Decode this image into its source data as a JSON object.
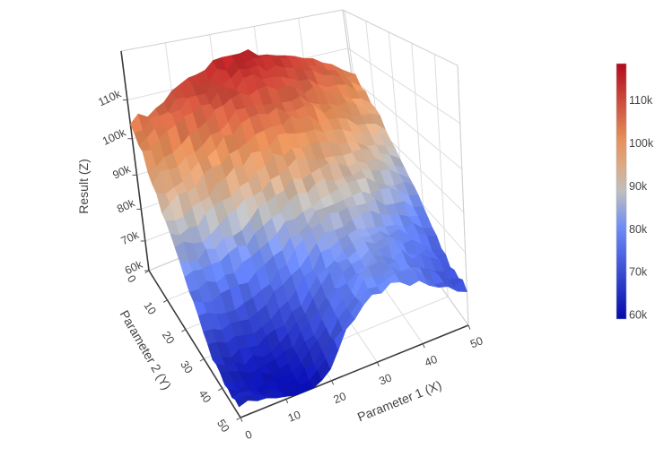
{
  "chart_data": {
    "type": "surface",
    "title": "",
    "xlabel": "Parameter 1 (X)",
    "ylabel": "Parameter 2 (Y)",
    "zlabel": "Result (Z)",
    "x": [
      0,
      5,
      10,
      15,
      20,
      25,
      30,
      35,
      40,
      45,
      50
    ],
    "y": [
      0,
      5,
      10,
      15,
      20,
      25,
      30,
      35,
      40,
      45,
      50
    ],
    "z_unit": "thousands",
    "z_k": [
      [
        103,
        106,
        110,
        113,
        115,
        116,
        114,
        112,
        109,
        106,
        104
      ],
      [
        100,
        104,
        107,
        110,
        112,
        113,
        112,
        110,
        107,
        104,
        101
      ],
      [
        96,
        100,
        103,
        105,
        107,
        108,
        107,
        104,
        101,
        98,
        96
      ],
      [
        92,
        95,
        98,
        101,
        103,
        103,
        101,
        98,
        95,
        92,
        90
      ],
      [
        88,
        91,
        94,
        96,
        97,
        96,
        93,
        90,
        87,
        85,
        85
      ],
      [
        84,
        88,
        90,
        91,
        91,
        89,
        86,
        82,
        80,
        79,
        80
      ],
      [
        79,
        83,
        86,
        87,
        87,
        84,
        79,
        75,
        72,
        72,
        73
      ],
      [
        75,
        79,
        82,
        84,
        83,
        79,
        73,
        68,
        65,
        65,
        67
      ],
      [
        72,
        76,
        80,
        82,
        81,
        76,
        69,
        63,
        61,
        62,
        64
      ],
      [
        71,
        74,
        79,
        81,
        80,
        75,
        66,
        61,
        60,
        61,
        63
      ],
      [
        70,
        73,
        78,
        80,
        79,
        74,
        64,
        60,
        61,
        62,
        64
      ]
    ],
    "x_ticks": [
      {
        "value": 0,
        "label": "0"
      },
      {
        "value": 10,
        "label": "10"
      },
      {
        "value": 20,
        "label": "20"
      },
      {
        "value": 30,
        "label": "30"
      },
      {
        "value": 40,
        "label": "40"
      },
      {
        "value": 50,
        "label": "50"
      }
    ],
    "y_ticks": [
      {
        "value": 0,
        "label": "0"
      },
      {
        "value": 10,
        "label": "10"
      },
      {
        "value": 20,
        "label": "20"
      },
      {
        "value": 30,
        "label": "30"
      },
      {
        "value": 40,
        "label": "40"
      },
      {
        "value": 50,
        "label": "50"
      }
    ],
    "z_ticks": [
      {
        "value": 60,
        "label": "60k"
      },
      {
        "value": 70,
        "label": "70k"
      },
      {
        "value": 80,
        "label": "80k"
      },
      {
        "value": 90,
        "label": "90k"
      },
      {
        "value": 100,
        "label": "100k"
      },
      {
        "value": 110,
        "label": "110k"
      }
    ],
    "color_range_k": [
      59,
      118.5
    ],
    "colorscale": [
      [
        0.0,
        [
          5,
          10,
          172
        ]
      ],
      [
        0.35,
        [
          106,
          137,
          247
        ]
      ],
      [
        0.5,
        [
          190,
          190,
          190
        ]
      ],
      [
        0.6,
        [
          220,
          170,
          132
        ]
      ],
      [
        0.7,
        [
          230,
          145,
          90
        ]
      ],
      [
        1.0,
        [
          178,
          10,
          28
        ]
      ]
    ],
    "colorbar_ticks": [
      {
        "value": 60,
        "label": "60k"
      },
      {
        "value": 70,
        "label": "70k"
      },
      {
        "value": 80,
        "label": "80k"
      },
      {
        "value": 90,
        "label": "90k"
      },
      {
        "value": 100,
        "label": "100k"
      },
      {
        "value": 110,
        "label": "110k"
      }
    ],
    "legend_position": "right",
    "grid": "on",
    "surface_resolution": 26,
    "noise_amp_k": 1.25,
    "colors": {
      "background": "#ffffff",
      "grid_line": "#dddddd",
      "pane_border": "#cfcfcf",
      "axis_line": "#3a3a3a",
      "tick_text": "#444444"
    }
  }
}
